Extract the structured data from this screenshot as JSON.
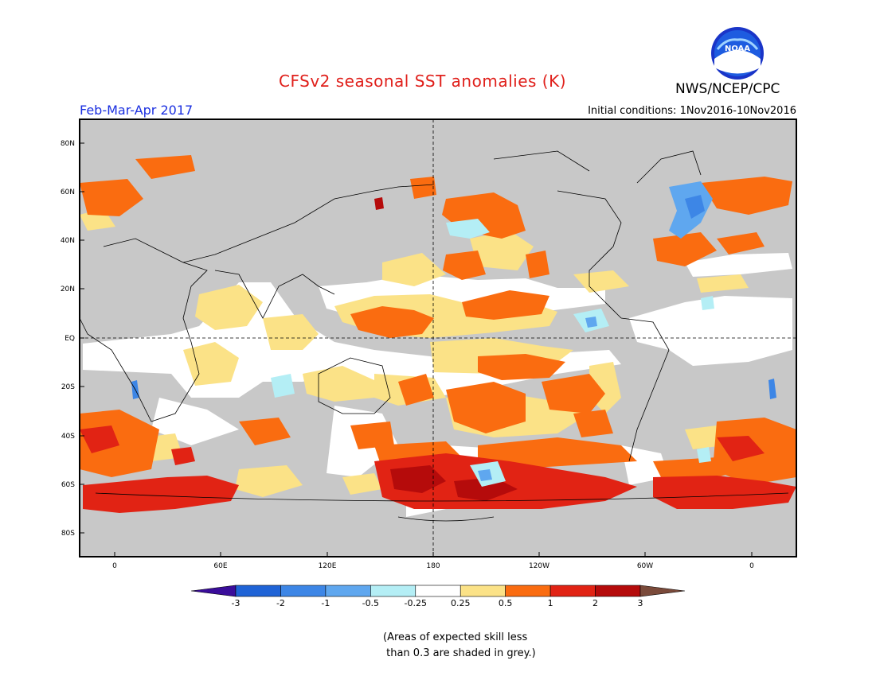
{
  "header": {
    "title": "CFSv2 seasonal SST anomalies (K)",
    "agency": "NWS/NCEP/CPC",
    "season": "Feb-Mar-Apr 2017",
    "initial_conditions": "Initial conditions: 1Nov2016-10Nov2016"
  },
  "logo": {
    "text": "NOAA"
  },
  "axes": {
    "lat_labels": [
      "80N",
      "60N",
      "40N",
      "20N",
      "EQ",
      "20S",
      "40S",
      "60S",
      "80S"
    ],
    "lon_labels": [
      "0",
      "60E",
      "120E",
      "180",
      "120W",
      "60W",
      "0"
    ]
  },
  "colorbar": {
    "labels": [
      "-3",
      "-2",
      "-1",
      "-0.5",
      "-0.25",
      "0.25",
      "0.5",
      "1",
      "2",
      "3"
    ],
    "colors": [
      "#3a0d9a",
      "#1f63d6",
      "#3d86e6",
      "#5fa7ef",
      "#b4eef5",
      "#ffffff",
      "#fbe287",
      "#fa6c10",
      "#e12314",
      "#b50b0b",
      "#7a4a3a"
    ]
  },
  "footnote": "(Areas of expected skill less\n than 0.3 are shaded in grey.)"
}
